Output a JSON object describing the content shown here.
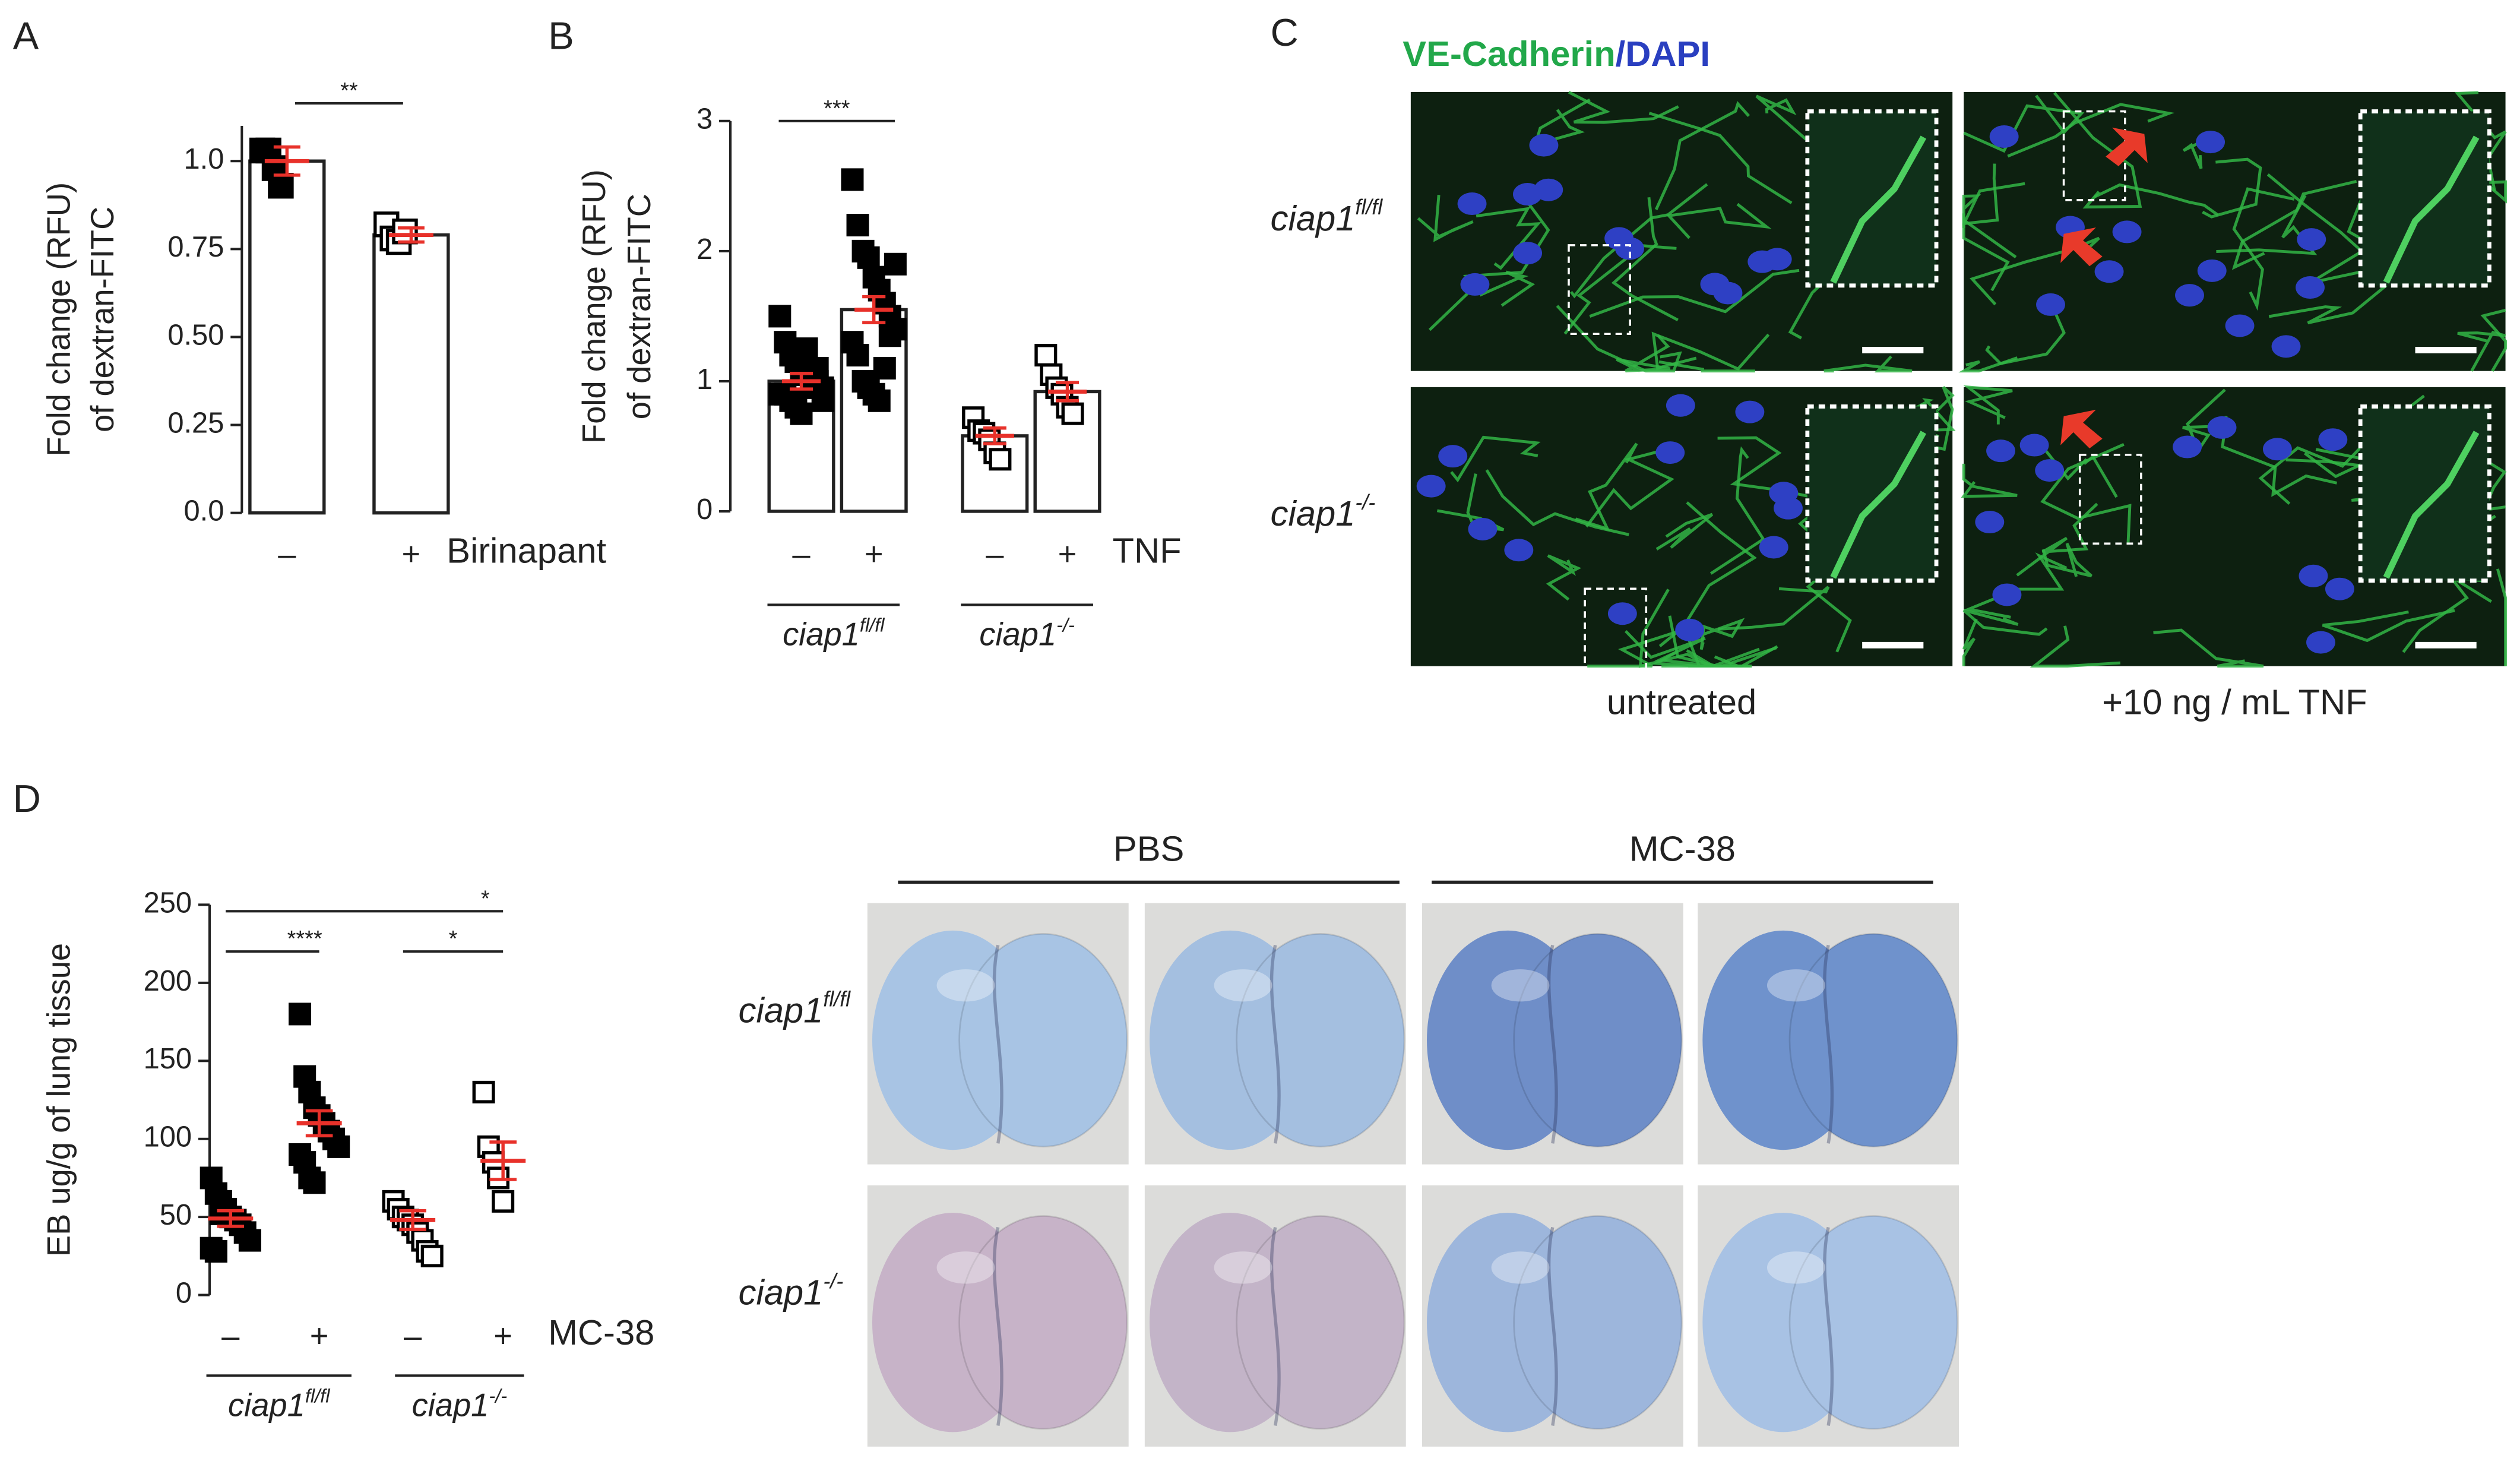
{
  "panel_labels": [
    "A",
    "B",
    "C",
    "D"
  ],
  "chart_data": [
    {
      "type": "bar",
      "categories": [
        "–",
        "+"
      ],
      "xlabel": "Birinapant",
      "ylabel": [
        "Fold change (RFU)",
        "of dextran-FITC"
      ],
      "values": [
        1.0,
        0.79
      ],
      "errors": [
        0.04,
        0.02
      ],
      "points": [
        [
          1.03,
          1.03,
          0.98,
          0.93
        ],
        [
          0.82,
          0.78,
          0.77,
          0.8
        ]
      ],
      "point_fill": [
        "#000000",
        "#ffffff"
      ],
      "error_color": "#e8312a",
      "ylim": [
        0,
        1.1
      ],
      "yticks": [
        {
          "value": 0,
          "label": "0.0"
        },
        0.25,
        {
          "value": 0.5,
          "label": "0.50"
        },
        0.75,
        {
          "value": 1,
          "label": "1.0"
        }
      ],
      "significance": [
        "**"
      ]
    },
    {
      "type": "bar",
      "categories": [
        "–",
        "+",
        "–",
        "+"
      ],
      "xlabel": "TNF",
      "ylabel": [
        "Fold change (RFU)",
        "of dextran-FITC"
      ],
      "values": [
        1.0,
        1.55,
        0.58,
        0.92
      ],
      "errors": [
        0.06,
        0.1,
        0.06,
        0.07
      ],
      "points": [
        [
          1.5,
          1.3,
          1.2,
          1.15,
          1.1,
          1.05,
          1.0,
          1.0,
          0.95,
          0.9,
          0.9,
          0.85,
          0.8,
          0.75,
          1.25,
          0.95,
          1.1,
          0.85
        ],
        [
          2.55,
          2.2,
          2.0,
          1.95,
          1.8,
          1.7,
          1.6,
          1.5,
          1.4,
          1.3,
          1.2,
          1.0,
          0.95,
          0.9,
          0.85,
          1.1,
          1.35,
          1.9
        ],
        [
          0.72,
          0.62,
          0.6,
          0.55,
          0.45,
          0.4
        ],
        [
          1.2,
          1.05,
          0.95,
          0.9,
          0.8,
          0.75
        ]
      ],
      "point_fill": [
        "#000000",
        "#000000",
        "#ffffff",
        "#ffffff"
      ],
      "error_color": "#e8312a",
      "groups": [
        {
          "base": "ciap1",
          "sup": "fl/fl"
        },
        {
          "base": "ciap1",
          "sup": "-/-"
        }
      ],
      "ylim": [
        0,
        3
      ],
      "yticks": [
        0,
        1,
        2,
        3
      ],
      "significance": [
        "***"
      ]
    },
    {
      "type": "dot",
      "categories": [
        "–",
        "+",
        "–",
        "+"
      ],
      "xlabel": "MC-38",
      "ylabel": [
        "EB ug/g of lung tissue"
      ],
      "values": [
        49,
        110,
        48,
        86
      ],
      "errors": [
        5,
        8,
        6,
        12
      ],
      "points": [
        [
          75,
          65,
          60,
          55,
          50,
          48,
          45,
          40,
          35,
          30,
          28,
          52
        ],
        [
          180,
          140,
          130,
          120,
          115,
          110,
          105,
          100,
          95,
          90,
          85,
          75,
          72
        ],
        [
          60,
          55,
          50,
          48,
          45,
          40,
          35,
          28,
          25
        ],
        [
          130,
          95,
          85,
          75,
          60
        ]
      ],
      "point_fill": [
        "#000000",
        "#000000",
        "#ffffff",
        "#ffffff"
      ],
      "error_color": "#e8312a",
      "groups": [
        {
          "base": "ciap1",
          "sup": "fl/fl"
        },
        {
          "base": "ciap1",
          "sup": "-/-"
        }
      ],
      "ylim": [
        0,
        250
      ],
      "yticks": [
        0,
        50,
        100,
        150,
        200,
        250
      ],
      "significance": [
        "*",
        "****",
        "*"
      ]
    }
  ],
  "microscopy": {
    "stain1": "VE-Cadherin",
    "separator": "/",
    "stain2": "DAPI",
    "rows": [
      {
        "base": "ciap1",
        "sup": "fl/fl"
      },
      {
        "base": "ciap1",
        "sup": "-/-"
      }
    ],
    "columns": [
      "untreated",
      "+10 ng / mL TNF"
    ]
  },
  "lung_photos": {
    "columns": [
      "PBS",
      "MC-38"
    ],
    "rows": [
      {
        "base": "ciap1",
        "sup": "fl/fl"
      },
      {
        "base": "ciap1",
        "sup": "-/-"
      }
    ]
  }
}
